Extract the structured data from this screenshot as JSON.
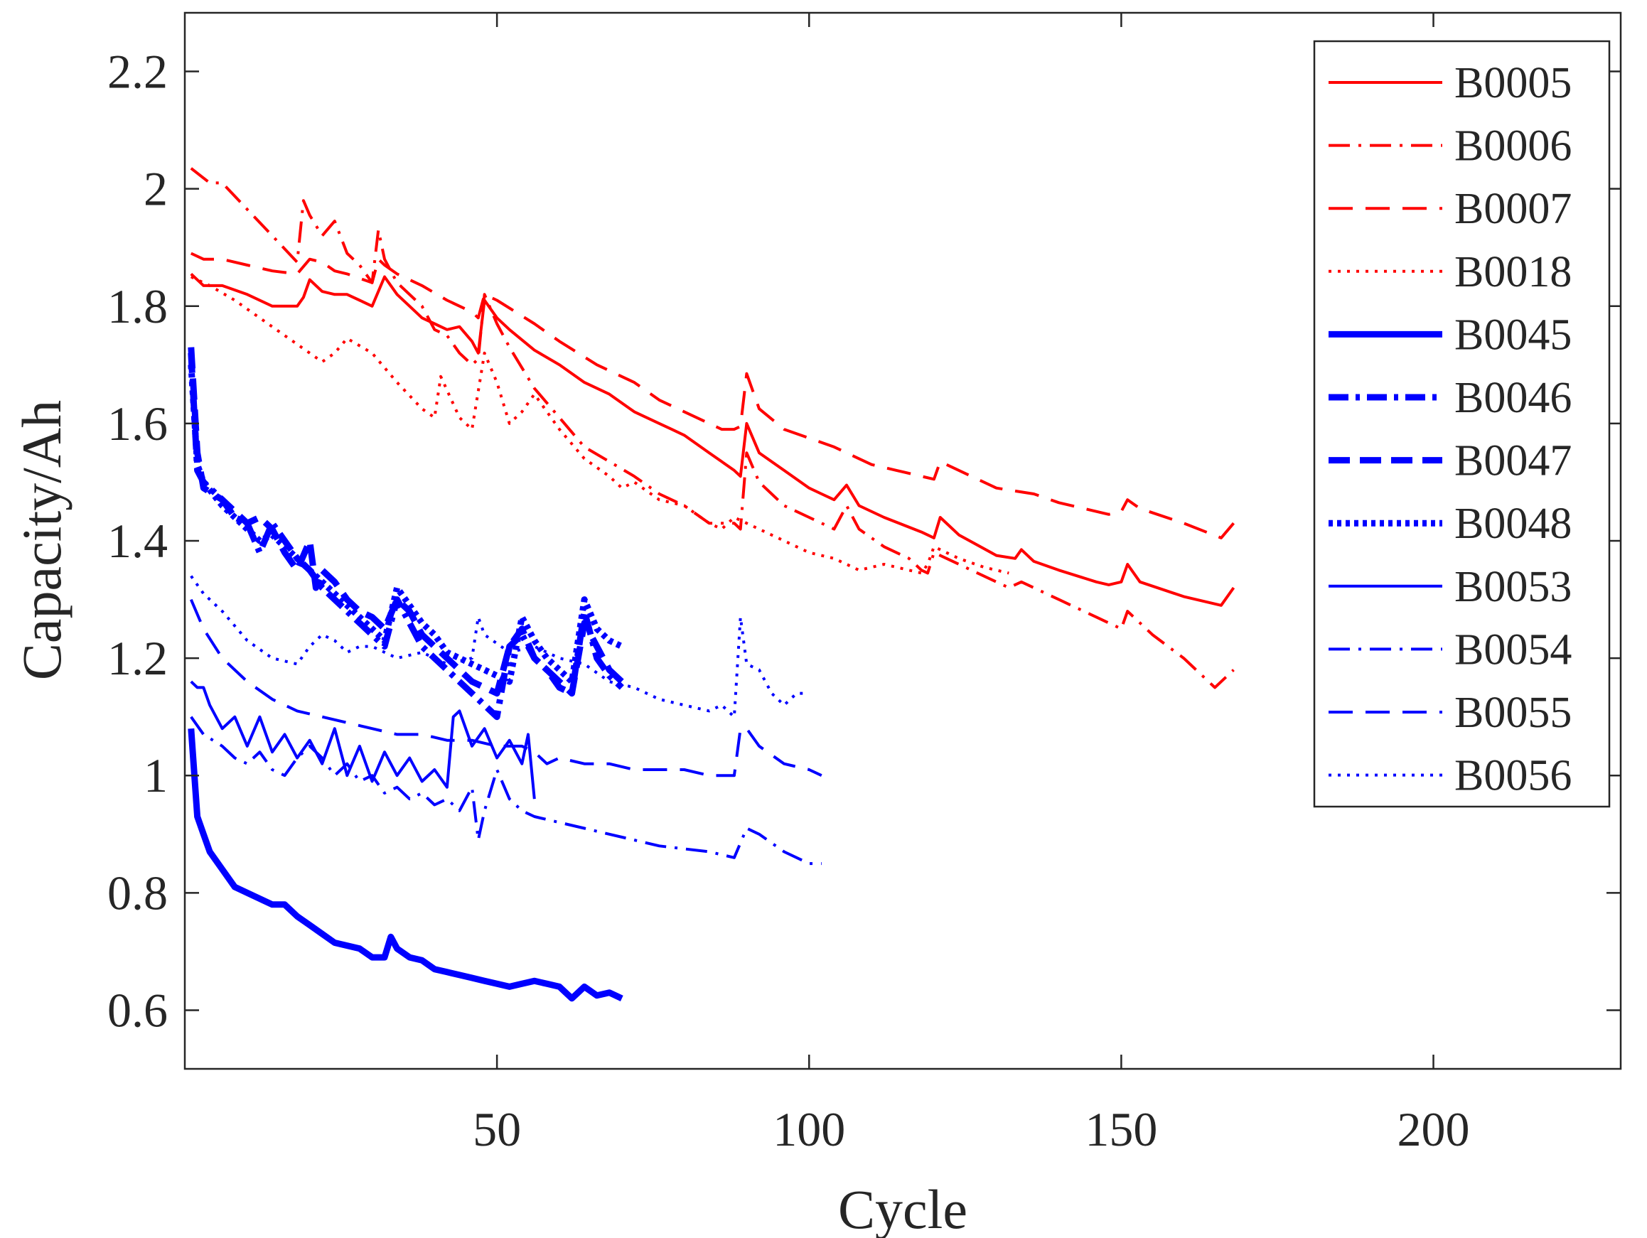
{
  "chart_data": {
    "type": "line",
    "title": "",
    "xlabel": "Cycle",
    "ylabel": "Capacity/Ah",
    "xlim": [
      0,
      230
    ],
    "ylim": [
      0.5,
      2.3
    ],
    "xticks": [
      50,
      100,
      150,
      200
    ],
    "yticks": [
      0.6,
      0.8,
      1,
      1.2,
      1.4,
      1.6,
      1.8,
      2,
      2.2
    ],
    "xtick_labels": [
      "50",
      "100",
      "150",
      "200"
    ],
    "ytick_labels": [
      "0.6",
      "0.8",
      "1",
      "1.2",
      "1.4",
      "1.6",
      "1.8",
      "2",
      "2.2"
    ],
    "grid": false,
    "legend_position": "top-right",
    "series": [
      {
        "name": "B0005",
        "color": "#ff0000",
        "style": "solid",
        "width": "thin",
        "x": [
          1,
          3,
          6,
          10,
          14,
          18,
          19,
          20,
          22,
          24,
          26,
          28,
          30,
          32,
          34,
          36,
          38,
          40,
          42,
          44,
          46,
          47,
          48,
          50,
          52,
          56,
          60,
          64,
          68,
          72,
          76,
          78,
          80,
          84,
          88,
          89,
          90,
          92,
          96,
          100,
          102,
          104,
          106,
          108,
          112,
          118,
          120,
          121,
          124,
          130,
          133,
          134,
          136,
          140,
          146,
          148,
          150,
          151,
          153,
          160,
          166,
          168
        ],
        "y": [
          1.855,
          1.835,
          1.835,
          1.82,
          1.8,
          1.8,
          1.815,
          1.845,
          1.825,
          1.82,
          1.82,
          1.81,
          1.8,
          1.85,
          1.82,
          1.8,
          1.78,
          1.77,
          1.76,
          1.765,
          1.74,
          1.72,
          1.81,
          1.78,
          1.76,
          1.725,
          1.7,
          1.67,
          1.65,
          1.62,
          1.6,
          1.59,
          1.58,
          1.55,
          1.52,
          1.51,
          1.6,
          1.55,
          1.52,
          1.49,
          1.48,
          1.47,
          1.495,
          1.46,
          1.44,
          1.415,
          1.405,
          1.44,
          1.41,
          1.375,
          1.37,
          1.385,
          1.365,
          1.35,
          1.33,
          1.325,
          1.33,
          1.36,
          1.33,
          1.305,
          1.29,
          1.32
        ]
      },
      {
        "name": "B0006",
        "color": "#ff0000",
        "style": "dashdot",
        "width": "thin",
        "x": [
          1,
          4,
          6,
          10,
          14,
          18,
          19,
          20,
          22,
          24,
          26,
          28,
          30,
          31,
          32,
          34,
          38,
          40,
          42,
          44,
          46,
          47,
          48,
          50,
          52,
          56,
          60,
          64,
          68,
          72,
          76,
          80,
          84,
          88,
          89,
          90,
          92,
          96,
          100,
          102,
          104,
          106,
          108,
          112,
          116,
          118,
          119,
          120,
          124,
          130,
          132,
          134,
          140,
          146,
          150,
          151,
          155,
          160,
          165,
          168
        ],
        "y": [
          2.035,
          2.01,
          2.01,
          1.965,
          1.92,
          1.875,
          1.98,
          1.955,
          1.92,
          1.945,
          1.89,
          1.87,
          1.84,
          1.93,
          1.88,
          1.84,
          1.8,
          1.76,
          1.75,
          1.72,
          1.7,
          1.71,
          1.82,
          1.77,
          1.73,
          1.66,
          1.61,
          1.56,
          1.535,
          1.51,
          1.48,
          1.46,
          1.43,
          1.43,
          1.42,
          1.55,
          1.5,
          1.46,
          1.44,
          1.43,
          1.42,
          1.46,
          1.42,
          1.39,
          1.37,
          1.35,
          1.345,
          1.38,
          1.36,
          1.33,
          1.32,
          1.33,
          1.3,
          1.27,
          1.25,
          1.28,
          1.24,
          1.2,
          1.15,
          1.18
        ]
      },
      {
        "name": "B0007",
        "color": "#ff0000",
        "style": "dashed",
        "width": "thin",
        "x": [
          1,
          3,
          6,
          10,
          14,
          18,
          20,
          22,
          24,
          26,
          30,
          31,
          32,
          34,
          38,
          42,
          46,
          47,
          48,
          50,
          56,
          60,
          66,
          72,
          76,
          80,
          84,
          86,
          88,
          89,
          90,
          92,
          96,
          100,
          104,
          110,
          114,
          118,
          120,
          121,
          124,
          130,
          136,
          140,
          146,
          148,
          150,
          151,
          153,
          160,
          166,
          168
        ],
        "y": [
          1.89,
          1.88,
          1.88,
          1.87,
          1.86,
          1.855,
          1.88,
          1.875,
          1.86,
          1.855,
          1.84,
          1.88,
          1.87,
          1.855,
          1.835,
          1.81,
          1.79,
          1.78,
          1.82,
          1.81,
          1.77,
          1.74,
          1.7,
          1.67,
          1.64,
          1.62,
          1.6,
          1.59,
          1.59,
          1.595,
          1.685,
          1.625,
          1.59,
          1.575,
          1.56,
          1.53,
          1.52,
          1.51,
          1.505,
          1.535,
          1.52,
          1.49,
          1.48,
          1.465,
          1.45,
          1.445,
          1.45,
          1.47,
          1.455,
          1.43,
          1.405,
          1.43
        ]
      },
      {
        "name": "B0018",
        "color": "#ff0000",
        "style": "dotted",
        "width": "thin",
        "x": [
          1,
          4,
          8,
          12,
          16,
          20,
          22,
          24,
          26,
          30,
          34,
          38,
          40,
          41,
          44,
          46,
          48,
          50,
          52,
          54,
          56,
          60,
          64,
          68,
          70,
          72,
          76,
          78,
          80,
          84,
          86,
          88,
          92,
          96,
          100,
          104,
          106,
          108,
          112,
          116,
          118,
          119,
          120,
          124,
          128,
          130,
          132
        ],
        "y": [
          1.85,
          1.835,
          1.81,
          1.78,
          1.75,
          1.72,
          1.705,
          1.72,
          1.745,
          1.72,
          1.67,
          1.625,
          1.61,
          1.68,
          1.61,
          1.59,
          1.72,
          1.67,
          1.6,
          1.62,
          1.65,
          1.59,
          1.54,
          1.51,
          1.49,
          1.5,
          1.47,
          1.465,
          1.46,
          1.43,
          1.42,
          1.44,
          1.42,
          1.4,
          1.38,
          1.37,
          1.36,
          1.35,
          1.36,
          1.35,
          1.345,
          1.36,
          1.39,
          1.37,
          1.355,
          1.35,
          1.345
        ]
      },
      {
        "name": "B0045",
        "color": "#0000ff",
        "style": "solid",
        "width": "thick",
        "x": [
          1,
          2,
          3,
          4,
          6,
          8,
          10,
          12,
          14,
          16,
          18,
          20,
          22,
          24,
          26,
          28,
          30,
          32,
          33,
          34,
          36,
          38,
          40,
          42,
          44,
          46,
          48,
          50,
          52,
          54,
          56,
          58,
          60,
          62,
          64,
          66,
          68,
          70
        ],
        "y": [
          1.08,
          0.93,
          0.9,
          0.87,
          0.84,
          0.81,
          0.8,
          0.79,
          0.78,
          0.78,
          0.76,
          0.745,
          0.73,
          0.715,
          0.71,
          0.705,
          0.69,
          0.69,
          0.725,
          0.705,
          0.69,
          0.685,
          0.67,
          0.665,
          0.66,
          0.655,
          0.65,
          0.645,
          0.64,
          0.645,
          0.65,
          0.645,
          0.64,
          0.62,
          0.64,
          0.625,
          0.63,
          0.62
        ]
      },
      {
        "name": "B0046",
        "color": "#0000ff",
        "style": "dashdot",
        "width": "thick",
        "x": [
          1,
          2,
          3,
          6,
          8,
          10,
          12,
          14,
          16,
          18,
          20,
          22,
          24,
          26,
          28,
          30,
          32,
          34,
          36,
          38,
          40,
          42,
          44,
          46,
          48,
          50,
          52,
          54,
          56,
          58,
          60,
          62,
          64,
          66,
          68,
          70
        ],
        "y": [
          1.72,
          1.52,
          1.5,
          1.47,
          1.44,
          1.43,
          1.38,
          1.43,
          1.4,
          1.37,
          1.35,
          1.32,
          1.3,
          1.28,
          1.26,
          1.24,
          1.22,
          1.3,
          1.26,
          1.22,
          1.2,
          1.18,
          1.16,
          1.14,
          1.12,
          1.1,
          1.22,
          1.24,
          1.2,
          1.18,
          1.15,
          1.14,
          1.28,
          1.2,
          1.17,
          1.15
        ]
      },
      {
        "name": "B0047",
        "color": "#0000ff",
        "style": "dashed",
        "width": "thick",
        "x": [
          1,
          2,
          3,
          6,
          8,
          10,
          12,
          14,
          16,
          18,
          20,
          21,
          22,
          24,
          26,
          28,
          30,
          32,
          34,
          36,
          38,
          40,
          42,
          44,
          46,
          48,
          50,
          52,
          54,
          56,
          58,
          60,
          62,
          64,
          66,
          68,
          70
        ],
        "y": [
          1.73,
          1.55,
          1.49,
          1.47,
          1.45,
          1.43,
          1.44,
          1.42,
          1.38,
          1.35,
          1.4,
          1.32,
          1.35,
          1.33,
          1.3,
          1.28,
          1.27,
          1.25,
          1.3,
          1.28,
          1.24,
          1.22,
          1.2,
          1.18,
          1.16,
          1.15,
          1.14,
          1.22,
          1.25,
          1.2,
          1.18,
          1.16,
          1.14,
          1.26,
          1.22,
          1.18,
          1.16
        ]
      },
      {
        "name": "B0048",
        "color": "#0000ff",
        "style": "dotted",
        "width": "thick",
        "x": [
          1,
          2,
          3,
          6,
          8,
          10,
          12,
          14,
          16,
          18,
          20,
          22,
          24,
          26,
          28,
          30,
          32,
          34,
          36,
          38,
          40,
          42,
          44,
          46,
          48,
          50,
          52,
          54,
          56,
          58,
          60,
          62,
          64,
          66,
          68,
          70
        ],
        "y": [
          1.7,
          1.53,
          1.5,
          1.46,
          1.44,
          1.42,
          1.4,
          1.41,
          1.39,
          1.37,
          1.35,
          1.33,
          1.31,
          1.29,
          1.27,
          1.25,
          1.23,
          1.32,
          1.29,
          1.26,
          1.24,
          1.21,
          1.2,
          1.19,
          1.18,
          1.17,
          1.16,
          1.27,
          1.23,
          1.2,
          1.18,
          1.16,
          1.3,
          1.25,
          1.23,
          1.22
        ]
      },
      {
        "name": "B0053",
        "color": "#0000ff",
        "style": "solid",
        "width": "thin",
        "x": [
          1,
          2,
          3,
          4,
          6,
          8,
          10,
          12,
          14,
          16,
          18,
          20,
          22,
          24,
          26,
          28,
          30,
          32,
          34,
          36,
          38,
          40,
          42,
          43,
          44,
          46,
          48,
          50,
          52,
          54,
          55,
          56
        ],
        "y": [
          1.16,
          1.15,
          1.15,
          1.12,
          1.08,
          1.1,
          1.05,
          1.1,
          1.04,
          1.07,
          1.03,
          1.06,
          1.02,
          1.08,
          1.0,
          1.05,
          0.99,
          1.04,
          1.0,
          1.03,
          0.99,
          1.01,
          0.98,
          1.1,
          1.11,
          1.05,
          1.08,
          1.03,
          1.06,
          1.02,
          1.07,
          0.96
        ]
      },
      {
        "name": "B0054",
        "color": "#0000ff",
        "style": "dashdot",
        "width": "thin",
        "x": [
          1,
          3,
          6,
          8,
          10,
          12,
          14,
          16,
          18,
          20,
          22,
          24,
          26,
          28,
          30,
          32,
          34,
          36,
          38,
          40,
          42,
          44,
          46,
          47,
          48,
          50,
          52,
          54,
          56,
          60,
          64,
          68,
          72,
          76,
          80,
          84,
          88,
          90,
          92,
          96,
          100,
          102
        ],
        "y": [
          1.1,
          1.07,
          1.05,
          1.03,
          1.02,
          1.04,
          1.01,
          1.0,
          1.03,
          1.05,
          1.03,
          1.0,
          1.02,
          0.99,
          1.0,
          0.97,
          0.98,
          0.96,
          0.97,
          0.95,
          0.96,
          0.94,
          0.98,
          0.89,
          0.94,
          1.01,
          0.96,
          0.94,
          0.93,
          0.92,
          0.91,
          0.9,
          0.89,
          0.88,
          0.875,
          0.87,
          0.86,
          0.91,
          0.9,
          0.87,
          0.85,
          0.85
        ]
      },
      {
        "name": "B0055",
        "color": "#0000ff",
        "style": "dashed",
        "width": "thin",
        "x": [
          1,
          3,
          6,
          10,
          14,
          18,
          22,
          26,
          30,
          34,
          38,
          42,
          46,
          50,
          54,
          56,
          58,
          60,
          64,
          68,
          72,
          76,
          80,
          84,
          88,
          89,
          90,
          92,
          96,
          100,
          102
        ],
        "y": [
          1.3,
          1.25,
          1.2,
          1.16,
          1.13,
          1.11,
          1.1,
          1.09,
          1.08,
          1.07,
          1.07,
          1.06,
          1.06,
          1.05,
          1.05,
          1.04,
          1.02,
          1.03,
          1.02,
          1.02,
          1.01,
          1.01,
          1.01,
          1.0,
          1.0,
          1.08,
          1.08,
          1.05,
          1.02,
          1.01,
          1.0
        ]
      },
      {
        "name": "B0056",
        "color": "#0000ff",
        "style": "dotted",
        "width": "thin",
        "x": [
          1,
          3,
          6,
          10,
          14,
          18,
          20,
          22,
          24,
          26,
          28,
          30,
          34,
          38,
          42,
          46,
          47,
          48,
          52,
          56,
          60,
          64,
          68,
          72,
          76,
          80,
          84,
          86,
          88,
          89,
          90,
          92,
          94,
          96,
          98,
          100
        ],
        "y": [
          1.34,
          1.31,
          1.28,
          1.23,
          1.2,
          1.19,
          1.22,
          1.24,
          1.23,
          1.21,
          1.22,
          1.22,
          1.2,
          1.21,
          1.19,
          1.2,
          1.27,
          1.24,
          1.21,
          1.22,
          1.2,
          1.19,
          1.16,
          1.15,
          1.13,
          1.12,
          1.11,
          1.12,
          1.1,
          1.27,
          1.19,
          1.18,
          1.14,
          1.12,
          1.14,
          1.14
        ]
      }
    ]
  }
}
